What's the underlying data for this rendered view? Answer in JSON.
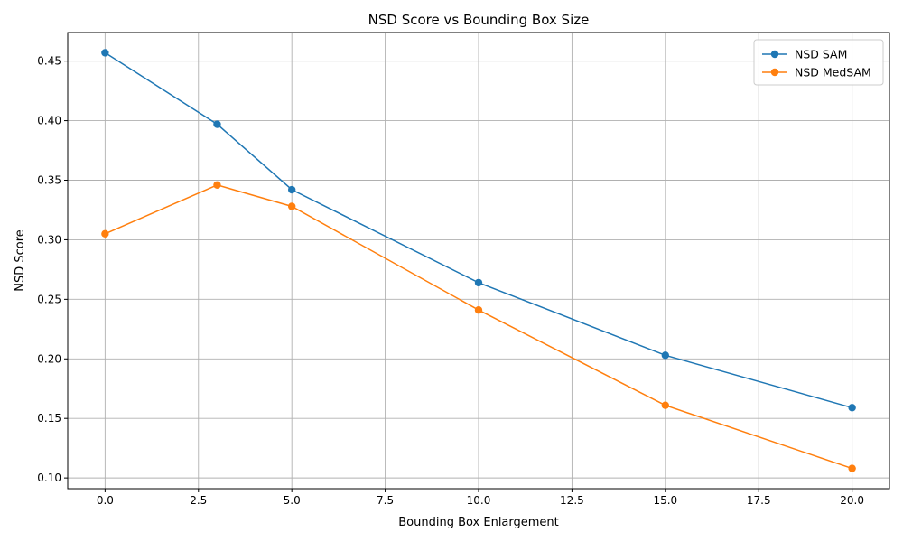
{
  "chart_data": {
    "type": "line",
    "title": "NSD Score vs Bounding Box Size",
    "xlabel": "Bounding Box Enlargement",
    "ylabel": "NSD Score",
    "x": [
      0,
      3,
      5,
      10,
      15,
      20
    ],
    "xlim": [
      -1,
      21
    ],
    "ylim": [
      0.091,
      0.474
    ],
    "xticks": [
      0.0,
      2.5,
      5.0,
      7.5,
      10.0,
      12.5,
      15.0,
      17.5,
      20.0
    ],
    "xtick_labels": [
      "0.0",
      "2.5",
      "5.0",
      "7.5",
      "10.0",
      "12.5",
      "15.0",
      "17.5",
      "20.0"
    ],
    "yticks": [
      0.1,
      0.15,
      0.2,
      0.25,
      0.3,
      0.35,
      0.4,
      0.45
    ],
    "ytick_labels": [
      "0.10",
      "0.15",
      "0.20",
      "0.25",
      "0.30",
      "0.35",
      "0.40",
      "0.45"
    ],
    "grid": true,
    "legend_position": "top-right",
    "series": [
      {
        "name": "NSD SAM",
        "color": "#1f77b4",
        "values": [
          0.457,
          0.397,
          0.342,
          0.264,
          0.203,
          0.159
        ]
      },
      {
        "name": "NSD MedSAM",
        "color": "#ff7f0e",
        "values": [
          0.305,
          0.346,
          0.328,
          0.241,
          0.161,
          0.108
        ]
      }
    ]
  }
}
